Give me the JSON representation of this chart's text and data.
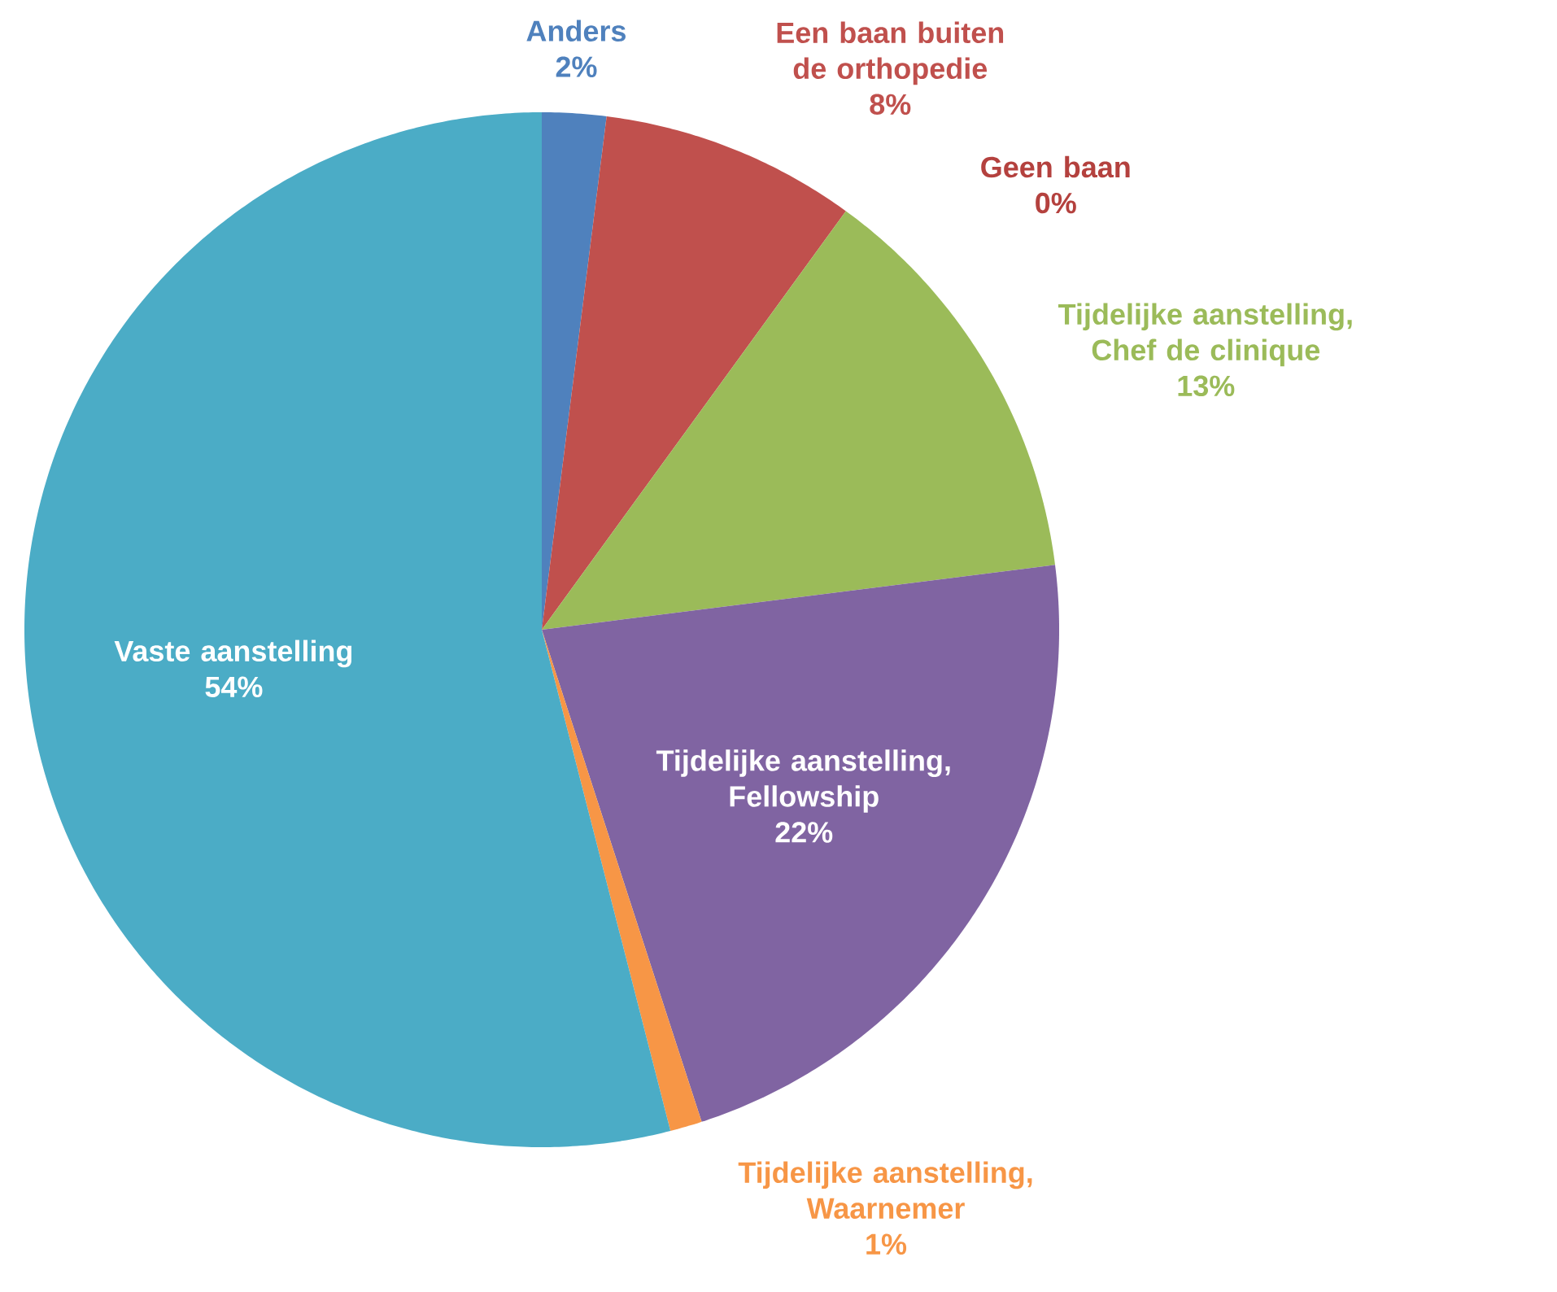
{
  "chart_data": {
    "type": "pie",
    "legend": false,
    "categories": [
      "Anders",
      "Een baan buiten de orthopedie",
      "Geen baan",
      "Tijdelijke aanstelling, Chef de clinique",
      "Tijdelijke aanstelling, Fellowship",
      "Tijdelijke aanstelling, Waarnemer",
      "Vaste aanstelling"
    ],
    "values": [
      2,
      8,
      0,
      13,
      22,
      1,
      54
    ],
    "value_labels": [
      "2%",
      "8%",
      "0%",
      "13%",
      "22%",
      "1%",
      "54%"
    ],
    "colors": [
      "#4f81bd",
      "#c0504d",
      "#b4413e",
      "#9bbb59",
      "#8064a2",
      "#f79646",
      "#4bacc6"
    ]
  }
}
